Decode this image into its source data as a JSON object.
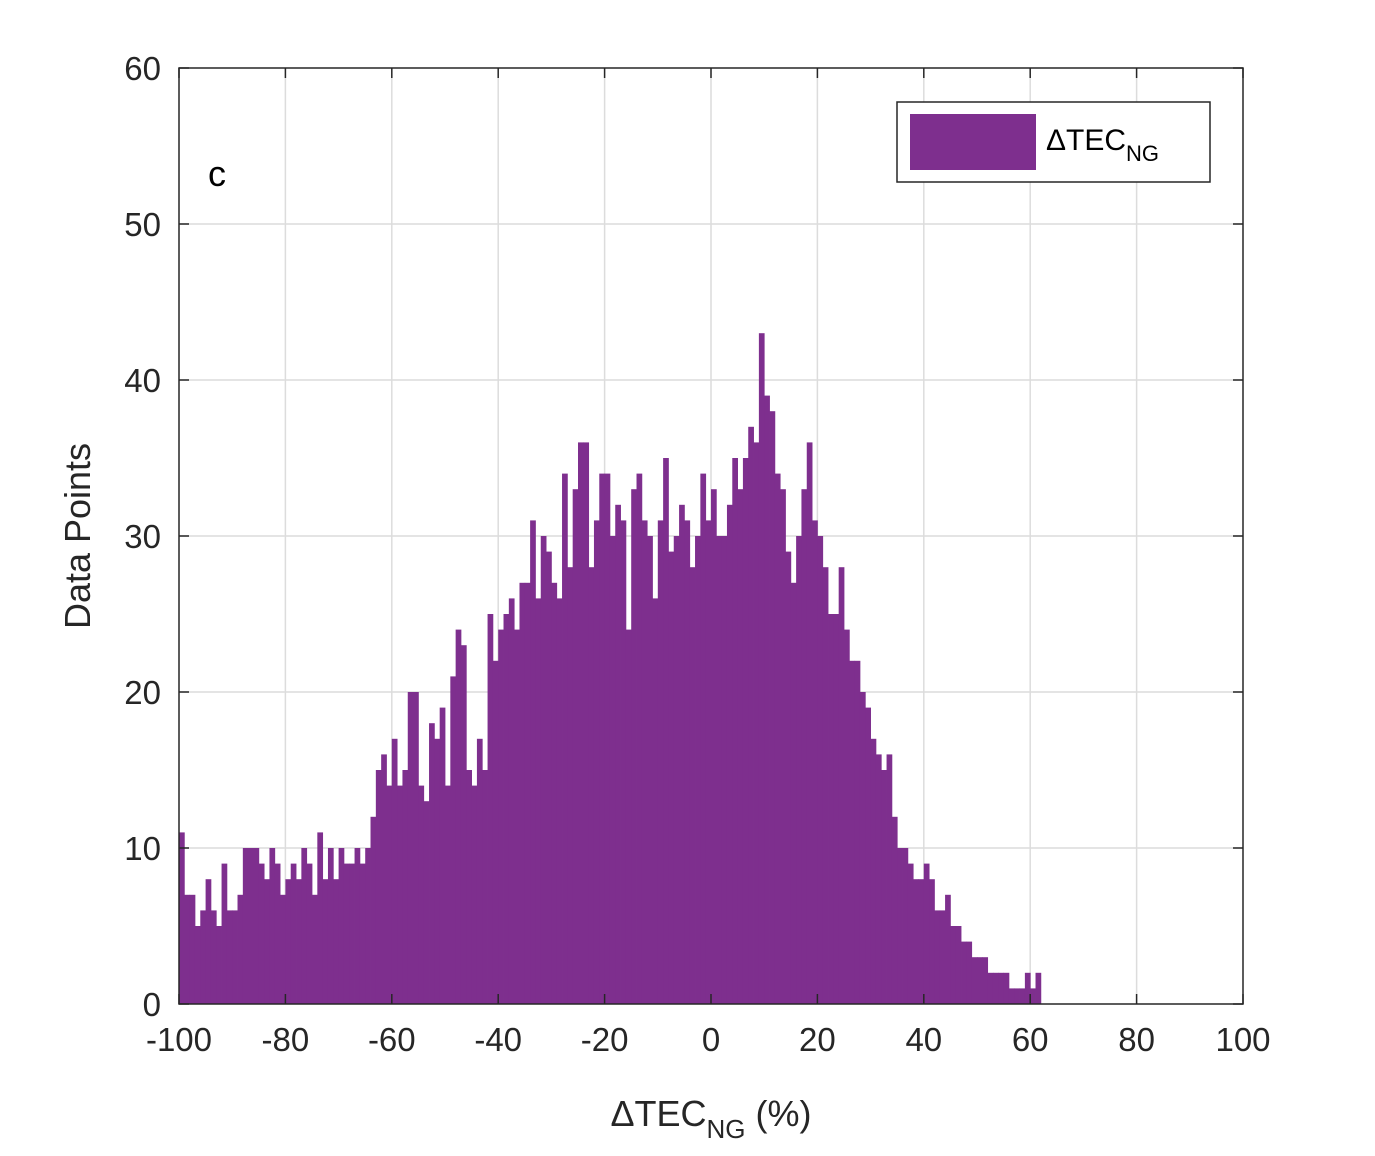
{
  "chart_data": {
    "type": "bar",
    "panel_label": "c",
    "xlabel": {
      "main": "ΔTEC",
      "sub": "NG",
      "suffix": " (%)"
    },
    "ylabel": "Data Points",
    "xlim": [
      -100,
      100
    ],
    "ylim": [
      0,
      60
    ],
    "xticks": [
      -100,
      -80,
      -60,
      -40,
      -20,
      0,
      20,
      40,
      60,
      80,
      100
    ],
    "yticks": [
      0,
      10,
      20,
      30,
      40,
      50,
      60
    ],
    "xtick_labels": [
      "-100",
      "-80",
      "-60",
      "-40",
      "-20",
      "0",
      "20",
      "40",
      "60",
      "80",
      "100"
    ],
    "ytick_labels": [
      "0",
      "10",
      "20",
      "30",
      "40",
      "50",
      "60"
    ],
    "grid": true,
    "legend": {
      "position": "top-right",
      "entries": [
        {
          "main": "ΔTEC",
          "sub": "NG"
        }
      ]
    },
    "bar_color": "#7E2F8E",
    "bin_width": 1,
    "bin_centers": [
      -99.5,
      -98.5,
      -97.5,
      -96.5,
      -95.5,
      -94.5,
      -93.5,
      -92.5,
      -91.5,
      -90.5,
      -89.5,
      -88.5,
      -87.5,
      -86.5,
      -85.5,
      -84.5,
      -83.5,
      -82.5,
      -81.5,
      -80.5,
      -79.5,
      -78.5,
      -77.5,
      -76.5,
      -75.5,
      -74.5,
      -73.5,
      -72.5,
      -71.5,
      -70.5,
      -69.5,
      -68.5,
      -67.5,
      -66.5,
      -65.5,
      -64.5,
      -63.5,
      -62.5,
      -61.5,
      -60.5,
      -59.5,
      -58.5,
      -57.5,
      -56.5,
      -55.5,
      -54.5,
      -53.5,
      -52.5,
      -51.5,
      -50.5,
      -49.5,
      -48.5,
      -47.5,
      -46.5,
      -45.5,
      -44.5,
      -43.5,
      -42.5,
      -41.5,
      -40.5,
      -39.5,
      -38.5,
      -37.5,
      -36.5,
      -35.5,
      -34.5,
      -33.5,
      -32.5,
      -31.5,
      -30.5,
      -29.5,
      -28.5,
      -27.5,
      -26.5,
      -25.5,
      -24.5,
      -23.5,
      -22.5,
      -21.5,
      -20.5,
      -19.5,
      -18.5,
      -17.5,
      -16.5,
      -15.5,
      -14.5,
      -13.5,
      -12.5,
      -11.5,
      -10.5,
      -9.5,
      -8.5,
      -7.5,
      -6.5,
      -5.5,
      -4.5,
      -3.5,
      -2.5,
      -1.5,
      -0.5,
      0.5,
      1.5,
      2.5,
      3.5,
      4.5,
      5.5,
      6.5,
      7.5,
      8.5,
      9.5,
      10.5,
      11.5,
      12.5,
      13.5,
      14.5,
      15.5,
      16.5,
      17.5,
      18.5,
      19.5,
      20.5,
      21.5,
      22.5,
      23.5,
      24.5,
      25.5,
      26.5,
      27.5,
      28.5,
      29.5,
      30.5,
      31.5,
      32.5,
      33.5,
      34.5,
      35.5,
      36.5,
      37.5,
      38.5,
      39.5,
      40.5,
      41.5,
      42.5,
      43.5,
      44.5,
      45.5,
      46.5,
      47.5,
      48.5,
      49.5,
      50.5,
      51.5,
      52.5,
      53.5,
      54.5,
      55.5,
      56.5,
      57.5,
      58.5,
      59.5,
      60.5,
      61.5
    ],
    "values": [
      11,
      7,
      7,
      5,
      6,
      8,
      6,
      5,
      9,
      6,
      6,
      7,
      10,
      10,
      10,
      9,
      8,
      10,
      9,
      7,
      8,
      9,
      8,
      10,
      9,
      7,
      11,
      8,
      10,
      8,
      10,
      9,
      9,
      10,
      9,
      10,
      12,
      15,
      16,
      14,
      17,
      14,
      15,
      20,
      20,
      14,
      13,
      18,
      17,
      19,
      14,
      21,
      24,
      23,
      15,
      14,
      17,
      15,
      25,
      22,
      24,
      25,
      26,
      24,
      27,
      27,
      31,
      26,
      30,
      29,
      27,
      26,
      34,
      28,
      33,
      36,
      36,
      28,
      31,
      34,
      34,
      30,
      32,
      31,
      24,
      33,
      34,
      31,
      30,
      26,
      31,
      35,
      29,
      30,
      32,
      31,
      28,
      30,
      34,
      31,
      33,
      30,
      30,
      32,
      35,
      33,
      35,
      37,
      36,
      43,
      39,
      38,
      34,
      33,
      29,
      27,
      30,
      33,
      36,
      31,
      30,
      28,
      25,
      25,
      28,
      24,
      22,
      22,
      20,
      19,
      17,
      16,
      15,
      16,
      12,
      10,
      10,
      9,
      8,
      8,
      9,
      8,
      6,
      6,
      7,
      5,
      5,
      4,
      4,
      3,
      3,
      3,
      2,
      2,
      2,
      2,
      1,
      1,
      1,
      2,
      1,
      2
    ]
  }
}
